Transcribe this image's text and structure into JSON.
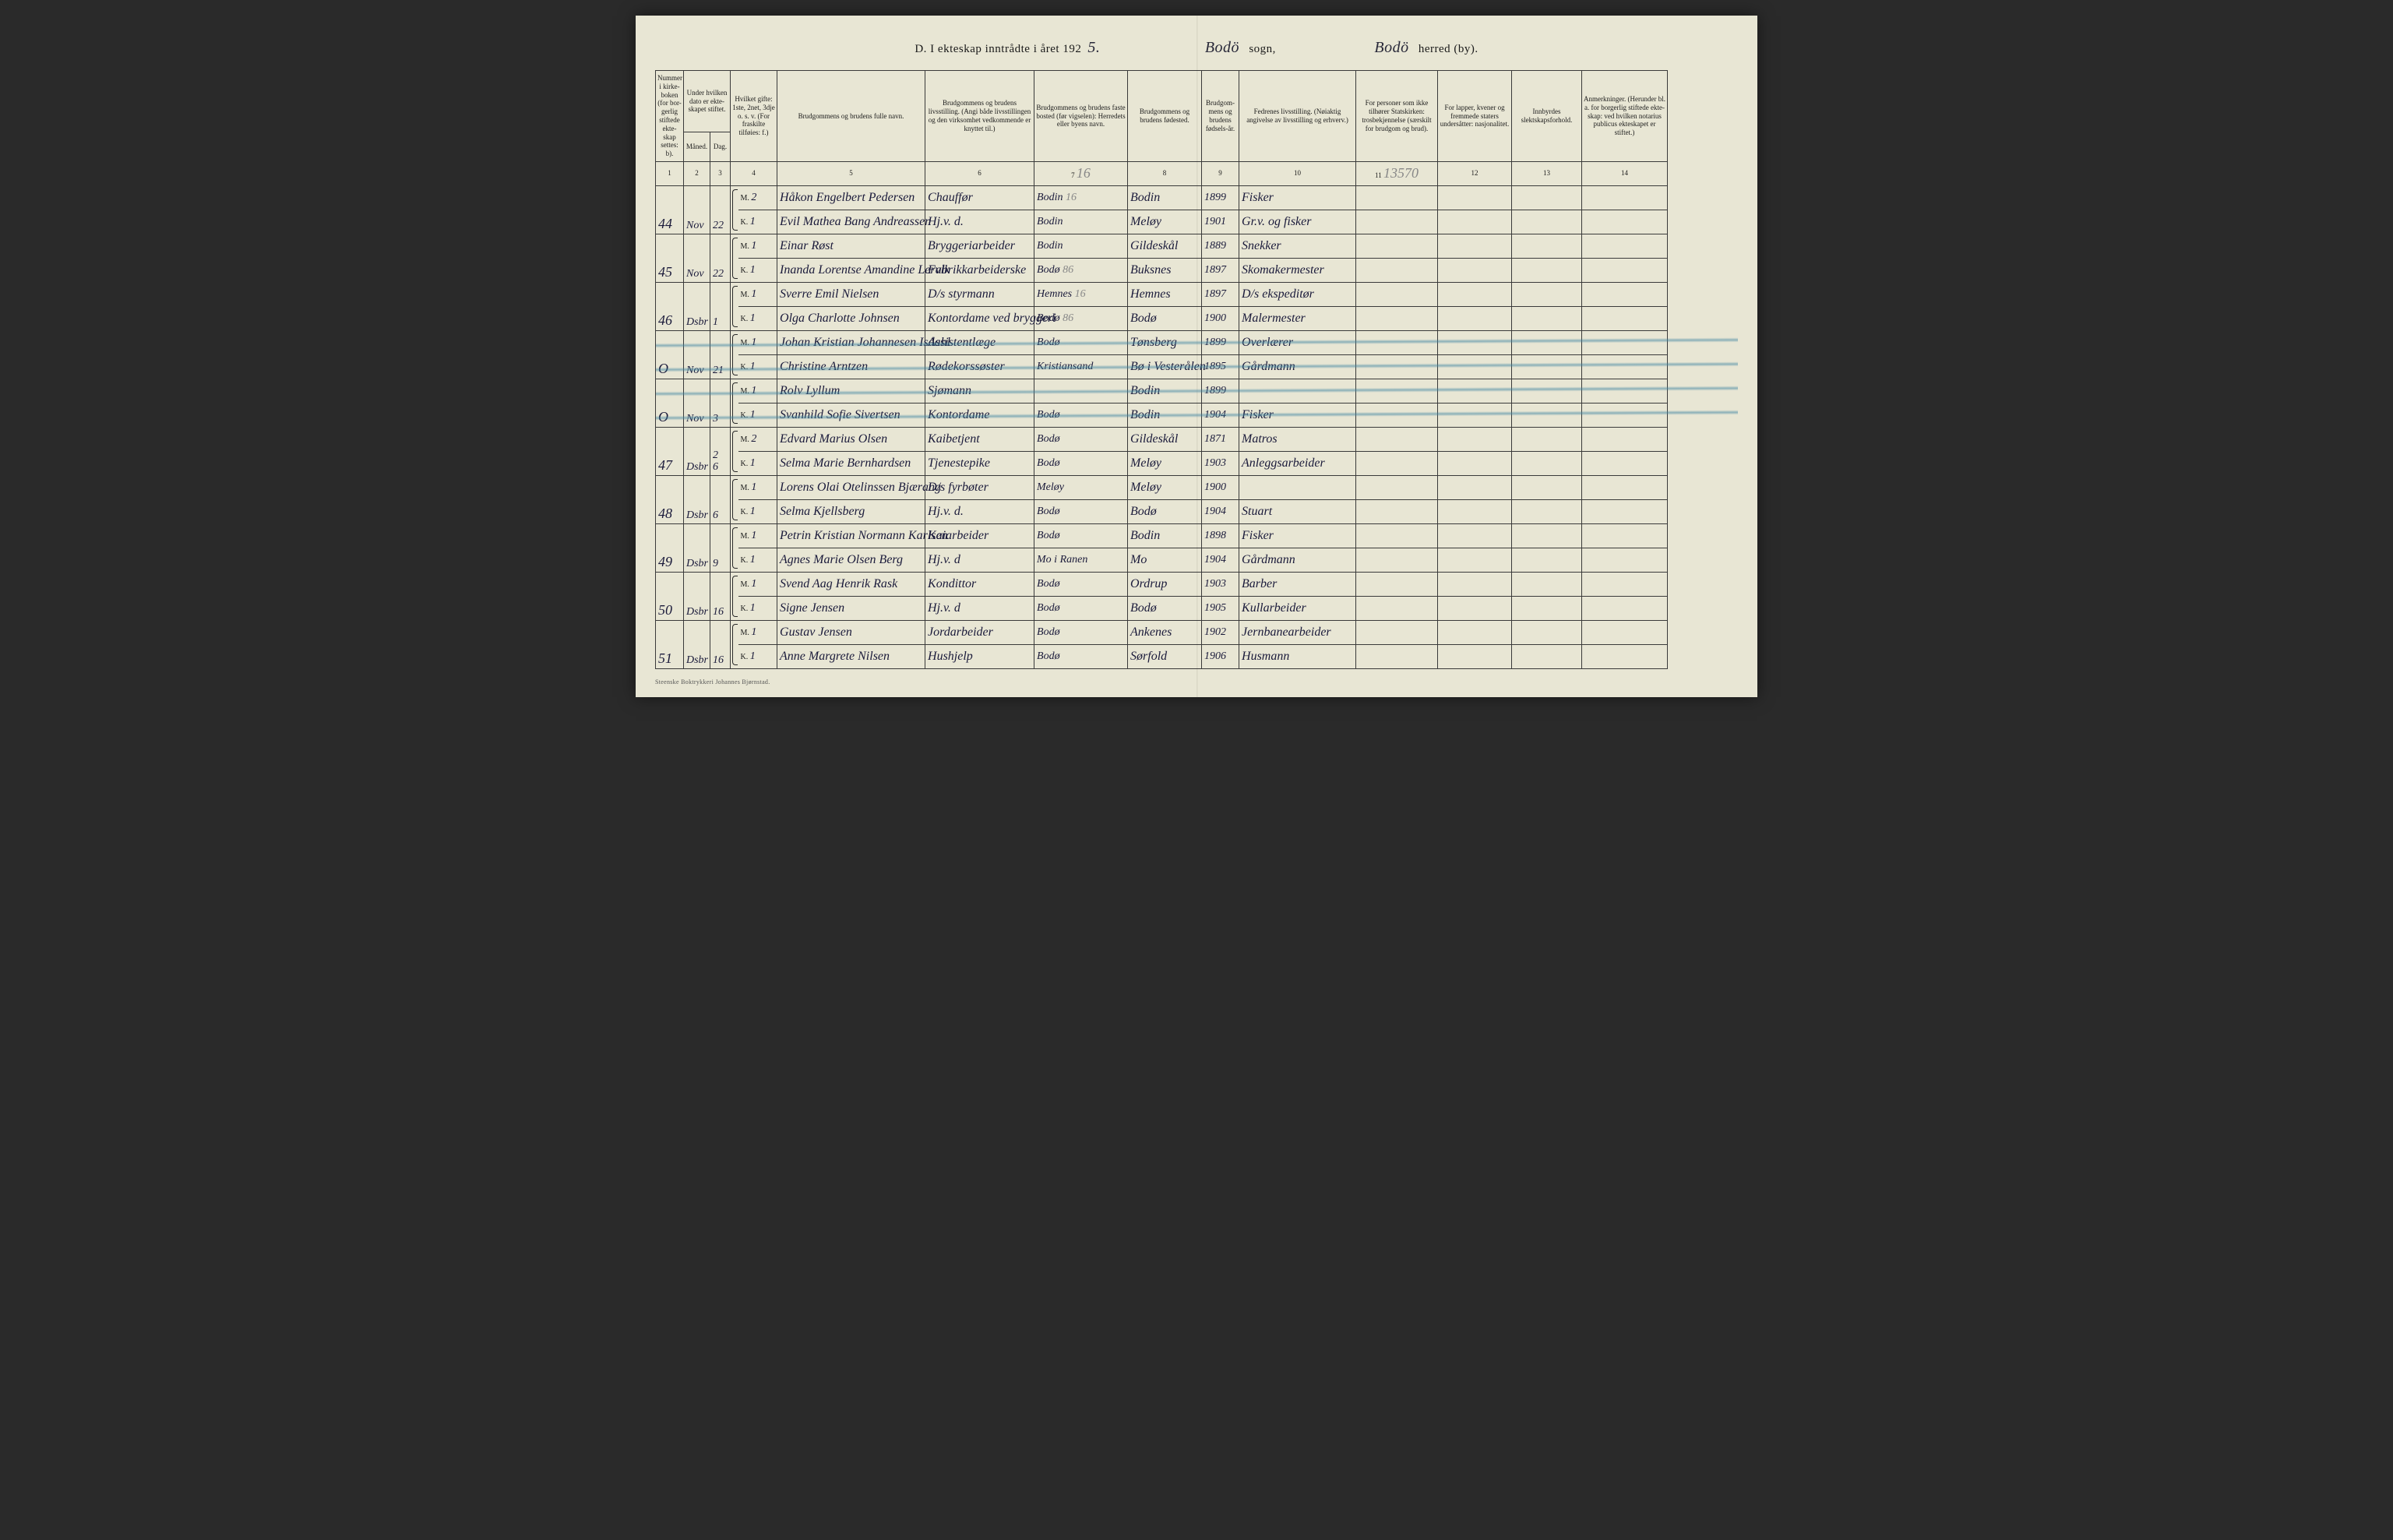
{
  "header": {
    "title_prefix": "D.  I ekteskap inntrådte i året 192",
    "year_suffix": "5.",
    "sogn_value": "Bodö",
    "sogn_label": "sogn,",
    "herred_value": "Bodö",
    "herred_label": "herred (by)."
  },
  "columns": [
    {
      "num": "1",
      "label": "Nummer i kirke-boken (for bor-gerlig stiftede ekte-skap settes: b)."
    },
    {
      "num": "2",
      "label": "Under hvilken dato er ekte-skapet stiftet.",
      "sub1": "Måned.",
      "sub2": "Dag."
    },
    {
      "num": "3",
      "label": ""
    },
    {
      "num": "4",
      "label": "Hvilket gifte: 1ste, 2net, 3dje o. s. v. (For fraskilte tilføies: f.)"
    },
    {
      "num": "5",
      "label": "Brudgommens og brudens fulle navn."
    },
    {
      "num": "6",
      "label": "Brudgommens og brudens livsstilling. (Angi både livsstillingen og den virksomhet vedkommende er knyttet til.)"
    },
    {
      "num": "7",
      "label": "Brudgommens og brudens faste bosted (før vigselen): Herredets eller byens navn."
    },
    {
      "num": "8",
      "label": "Brudgommens og brudens fødested."
    },
    {
      "num": "9",
      "label": "Brudgom-mens og brudens fødsels-år."
    },
    {
      "num": "10",
      "label": "Fedrenes livsstilling. (Nøiaktig angivelse av livsstilling og erhverv.)"
    },
    {
      "num": "11",
      "label": "For personer som ikke tilhører Statskirken: trosbekjennelse (særskilt for brudgom og brud)."
    },
    {
      "num": "12",
      "label": "For lapper, kvener og fremmede staters undersåtter: nasjonalitet."
    },
    {
      "num": "13",
      "label": "Innbyrdes slektskapsforhold."
    },
    {
      "num": "14",
      "label": "Anmerkninger. (Herunder bl. a. for borgerlig stiftede ekte-skap: ved hvilken notarius publicus ekteskapet er stiftet.)"
    }
  ],
  "pencil_notes": {
    "col7_top": "16",
    "col11_top": "13570"
  },
  "entries": [
    {
      "num": "44",
      "month": "Nov",
      "day": "22",
      "strike": false,
      "m": {
        "g": "M. 2",
        "name": "Håkon Engelbert Pedersen",
        "occ": "Chauffør",
        "res": "Bodin",
        "resNote": "16",
        "birth": "Bodin",
        "year": "1899",
        "father": "Fisker",
        "c11": "",
        "c12": "",
        "c13": "",
        "c14": ""
      },
      "k": {
        "g": "K. 1",
        "name": "Evil Mathea Bang Andreassen",
        "occ": "Hj.v. d.",
        "res": "Bodin",
        "resNote": "",
        "birth": "Meløy",
        "year": "1901",
        "father": "Gr.v. og fisker",
        "c11": "",
        "c12": "",
        "c13": "",
        "c14": ""
      }
    },
    {
      "num": "45",
      "month": "Nov",
      "day": "22",
      "strike": false,
      "m": {
        "g": "M. 1",
        "name": "Einar Røst",
        "occ": "Bryggeriarbeider",
        "res": "Bodin",
        "resNote": "",
        "birth": "Gildeskål",
        "year": "1889",
        "father": "Snekker",
        "c11": "",
        "c12": "",
        "c13": "",
        "c14": ""
      },
      "k": {
        "g": "K. 1",
        "name": "Inanda Lorentse Amandine Lervik",
        "occ": "Fabrikkarbeiderske",
        "res": "Bodø",
        "resNote": "86",
        "birth": "Buksnes",
        "year": "1897",
        "father": "Skomakermester",
        "c11": "",
        "c12": "",
        "c13": "",
        "c14": ""
      }
    },
    {
      "num": "46",
      "month": "Dsbr",
      "day": "1",
      "strike": false,
      "m": {
        "g": "M. 1",
        "name": "Sverre Emil Nielsen",
        "occ": "D/s styrmann",
        "res": "Hemnes",
        "resNote": "16",
        "birth": "Hemnes",
        "year": "1897",
        "father": "D/s ekspeditør",
        "c11": "",
        "c12": "",
        "c13": "",
        "c14": ""
      },
      "k": {
        "g": "K. 1",
        "name": "Olga Charlotte Johnsen",
        "occ": "Kontordame ved bryggeri",
        "res": "Bodø",
        "resNote": "86",
        "birth": "Bodø",
        "year": "1900",
        "father": "Malermester",
        "c11": "",
        "c12": "",
        "c13": "",
        "c14": ""
      }
    },
    {
      "num": "O",
      "month": "Nov",
      "day": "21",
      "strike": true,
      "m": {
        "g": "M. 1",
        "name": "Johan Kristian Johannesen Isdahl",
        "occ": "Assistentlæge",
        "res": "Bodø",
        "resNote": "",
        "birth": "Tønsberg",
        "year": "1899",
        "father": "Overlærer",
        "c11": "",
        "c12": "",
        "c13": "",
        "c14": ""
      },
      "k": {
        "g": "K. 1",
        "name": "Christine Arntzen",
        "occ": "Rødekorssøster",
        "res": "Kristiansand",
        "resNote": "",
        "birth": "Bø i Vesterålen",
        "year": "1895",
        "father": "Gårdmann",
        "c11": "",
        "c12": "",
        "c13": "",
        "c14": ""
      }
    },
    {
      "num": "O",
      "month": "Nov",
      "day": "3",
      "strike": true,
      "m": {
        "g": "M. 1",
        "name": "Rolv Lyllum",
        "occ": "Sjømann",
        "res": "",
        "resNote": "",
        "birth": "Bodin",
        "year": "1899",
        "father": "",
        "c11": "",
        "c12": "",
        "c13": "",
        "c14": ""
      },
      "k": {
        "g": "K. 1",
        "name": "Svanhild Sofie Sivertsen",
        "occ": "Kontordame",
        "res": "Bodø",
        "resNote": "",
        "birth": "Bodin",
        "year": "1904",
        "father": "Fisker",
        "c11": "",
        "c12": "",
        "c13": "",
        "c14": ""
      }
    },
    {
      "num": "47",
      "month": "Dsbr",
      "day": "2\n6",
      "strike": false,
      "m": {
        "g": "M. 2",
        "name": "Edvard Marius Olsen",
        "occ": "Kaibetjent",
        "res": "Bodø",
        "resNote": "",
        "birth": "Gildeskål",
        "year": "1871",
        "father": "Matros",
        "c11": "",
        "c12": "",
        "c13": "",
        "c14": ""
      },
      "k": {
        "g": "K. 1",
        "name": "Selma Marie Bernhardsen",
        "occ": "Tjenestepike",
        "res": "Bodø",
        "resNote": "",
        "birth": "Meløy",
        "year": "1903",
        "father": "Anleggsarbeider",
        "c11": "",
        "c12": "",
        "c13": "",
        "c14": ""
      }
    },
    {
      "num": "48",
      "month": "Dsbr",
      "day": "6",
      "strike": false,
      "m": {
        "g": "M. 1",
        "name": "Lorens Olai Otelinssen Bjærang",
        "occ": "D/s fyrbøter",
        "res": "Meløy",
        "resNote": "",
        "birth": "Meløy",
        "year": "1900",
        "father": "",
        "c11": "",
        "c12": "",
        "c13": "",
        "c14": ""
      },
      "k": {
        "g": "K. 1",
        "name": "Selma Kjellsberg",
        "occ": "Hj.v. d.",
        "res": "Bodø",
        "resNote": "",
        "birth": "Bodø",
        "year": "1904",
        "father": "Stuart",
        "c11": "",
        "c12": "",
        "c13": "",
        "c14": ""
      }
    },
    {
      "num": "49",
      "month": "Dsbr",
      "day": "9",
      "strike": false,
      "m": {
        "g": "M. 1",
        "name": "Petrin Kristian Normann Karlsen",
        "occ": "Kaiarbeider",
        "res": "Bodø",
        "resNote": "",
        "birth": "Bodin",
        "year": "1898",
        "father": "Fisker",
        "c11": "",
        "c12": "",
        "c13": "",
        "c14": ""
      },
      "k": {
        "g": "K. 1",
        "name": "Agnes Marie Olsen Berg",
        "occ": "Hj.v. d",
        "res": "Mo i Ranen",
        "resNote": "",
        "birth": "Mo",
        "year": "1904",
        "father": "Gårdmann",
        "c11": "",
        "c12": "",
        "c13": "",
        "c14": ""
      }
    },
    {
      "num": "50",
      "month": "Dsbr",
      "day": "16",
      "strike": false,
      "m": {
        "g": "M. 1",
        "name": "Svend Aag Henrik Rask",
        "occ": "Kondittor",
        "res": "Bodø",
        "resNote": "",
        "birth": "Ordrup",
        "year": "1903",
        "father": "Barber",
        "c11": "",
        "c12": "",
        "c13": "",
        "c14": ""
      },
      "k": {
        "g": "K. 1",
        "name": "Signe Jensen",
        "occ": "Hj.v. d",
        "res": "Bodø",
        "resNote": "",
        "birth": "Bodø",
        "year": "1905",
        "father": "Kullarbeider",
        "c11": "",
        "c12": "",
        "c13": "",
        "c14": ""
      }
    },
    {
      "num": "51",
      "month": "Dsbr",
      "day": "16",
      "strike": false,
      "m": {
        "g": "M. 1",
        "name": "Gustav Jensen",
        "occ": "Jordarbeider",
        "res": "Bodø",
        "resNote": "",
        "birth": "Ankenes",
        "year": "1902",
        "father": "Jernbanearbeider",
        "c11": "",
        "c12": "",
        "c13": "",
        "c14": ""
      },
      "k": {
        "g": "K. 1",
        "name": "Anne Margrete Nilsen",
        "occ": "Hushjelp",
        "res": "Bodø",
        "resNote": "",
        "birth": "Sørfold",
        "year": "1906",
        "father": "Husmann",
        "c11": "",
        "c12": "",
        "c13": "",
        "c14": ""
      }
    }
  ],
  "footer": "Steenske Boktrykkeri Johannes Bjørnstad."
}
